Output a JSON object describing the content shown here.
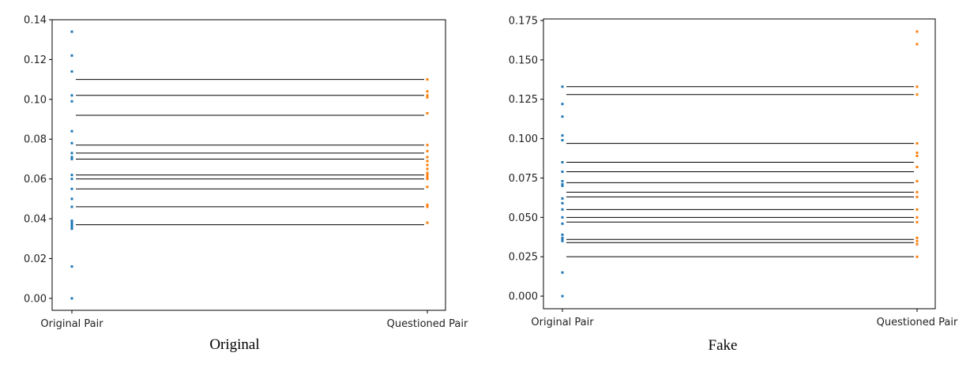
{
  "chart_data": [
    {
      "type": "scatter",
      "caption": "Original",
      "categories": [
        "Original Pair",
        "Questioned Pair"
      ],
      "ylim": [
        -0.006,
        0.14
      ],
      "yticks": [
        "0.00",
        "0.02",
        "0.04",
        "0.06",
        "0.08",
        "0.10",
        "0.12",
        "0.14"
      ],
      "series": [
        {
          "color": "#1f77b4",
          "x": "Original Pair",
          "values": [
            0.134,
            0.122,
            0.114,
            0.102,
            0.099,
            0.084,
            0.078,
            0.073,
            0.071,
            0.07,
            0.062,
            0.06,
            0.055,
            0.05,
            0.046,
            0.039,
            0.038,
            0.037,
            0.036,
            0.035,
            0.016,
            0.0
          ]
        },
        {
          "color": "#ff7f0e",
          "x": "Questioned Pair",
          "values": [
            0.11,
            0.104,
            0.102,
            0.101,
            0.093,
            0.077,
            0.074,
            0.071,
            0.069,
            0.067,
            0.065,
            0.063,
            0.062,
            0.061,
            0.06,
            0.056,
            0.047,
            0.046,
            0.038
          ]
        }
      ],
      "lines": [
        0.11,
        0.102,
        0.092,
        0.077,
        0.073,
        0.07,
        0.062,
        0.06,
        0.055,
        0.046,
        0.037
      ]
    },
    {
      "type": "scatter",
      "caption": "Fake",
      "categories": [
        "Original Pair",
        "Questioned Pair"
      ],
      "ylim": [
        -0.008,
        0.176
      ],
      "yticks": [
        "0.000",
        "0.025",
        "0.050",
        "0.075",
        "0.100",
        "0.125",
        "0.150",
        "0.175"
      ],
      "series": [
        {
          "color": "#1f77b4",
          "x": "Original Pair",
          "values": [
            0.133,
            0.122,
            0.114,
            0.102,
            0.099,
            0.085,
            0.079,
            0.073,
            0.071,
            0.07,
            0.062,
            0.059,
            0.055,
            0.05,
            0.046,
            0.039,
            0.037,
            0.036,
            0.035,
            0.015,
            0.0
          ]
        },
        {
          "color": "#ff7f0e",
          "x": "Questioned Pair",
          "values": [
            0.168,
            0.16,
            0.133,
            0.128,
            0.097,
            0.091,
            0.089,
            0.082,
            0.073,
            0.066,
            0.063,
            0.055,
            0.05,
            0.047,
            0.037,
            0.035,
            0.033,
            0.025
          ]
        }
      ],
      "lines": [
        0.133,
        0.128,
        0.097,
        0.085,
        0.079,
        0.072,
        0.066,
        0.063,
        0.055,
        0.05,
        0.047,
        0.036,
        0.034,
        0.025
      ]
    }
  ]
}
